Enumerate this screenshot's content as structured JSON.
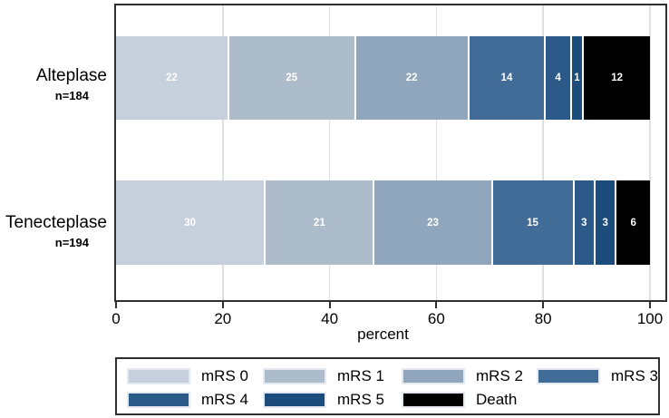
{
  "chart_data": {
    "type": "bar",
    "orientation": "horizontal",
    "stacked": true,
    "title": "",
    "xlabel": "percent",
    "x_ticks": [
      0,
      20,
      40,
      60,
      80,
      100
    ],
    "xlim": [
      0,
      100
    ],
    "grid": true,
    "legend_position": "bottom",
    "categories": [
      "mRS 0",
      "mRS 1",
      "mRS 2",
      "mRS 3",
      "mRS 4",
      "mRS 5",
      "Death"
    ],
    "colors": [
      "#c6d0dc",
      "#adbccb",
      "#8fa6bc",
      "#406c97",
      "#2c5a88",
      "#1c4c7b",
      "#000000"
    ],
    "legend_rows": [
      [
        "mRS 0",
        "mRS 1",
        "mRS 2",
        "mRS 3"
      ],
      [
        "mRS 4",
        "mRS 5",
        "Death"
      ]
    ],
    "groups": [
      {
        "label": "Alteplase",
        "n_label": "n=184",
        "values": [
          22,
          25,
          22,
          14,
          4,
          1,
          12
        ]
      },
      {
        "label": "Tenecteplase",
        "n_label": "n=194",
        "values": [
          30,
          21,
          23,
          15,
          3,
          3,
          6
        ]
      }
    ]
  }
}
